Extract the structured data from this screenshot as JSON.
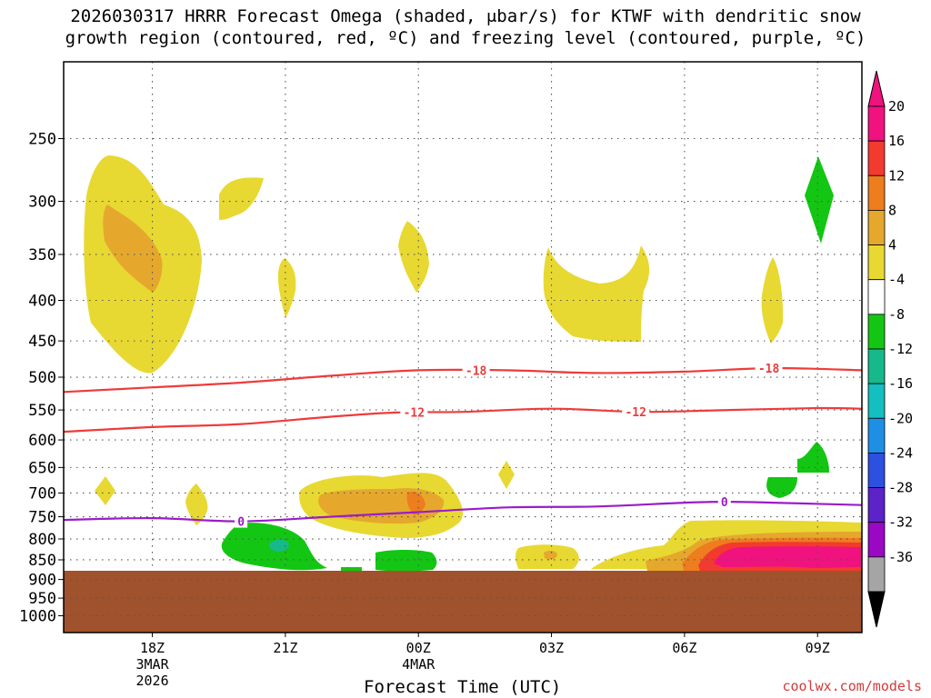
{
  "title": {
    "line1": "2026030317 HRRR Forecast Omega (shaded, μbar/s) for KTWF with dendritic snow",
    "line2": "growth region (contoured, red, ºC) and freezing level (contoured, purple, ºC)"
  },
  "credit": "coolwx.com/models",
  "chart_data": {
    "type": "heatmap",
    "title": "2026030317 HRRR Forecast Omega (shaded, μbar/s) for KTWF with dendritic snow growth region (contoured, red, ºC) and freezing level (contoured, purple, ºC)",
    "xlabel": "Forecast Time (UTC)",
    "ylabel": "",
    "x_range_hours": [
      16.0,
      34.0
    ],
    "x_ticks": [
      {
        "hour": 18,
        "label": "18Z",
        "sub1": "3MAR",
        "sub2": "2026"
      },
      {
        "hour": 21,
        "label": "21Z",
        "sub1": "",
        "sub2": ""
      },
      {
        "hour": 24,
        "label": "00Z",
        "sub1": "4MAR",
        "sub2": ""
      },
      {
        "hour": 27,
        "label": "03Z",
        "sub1": "",
        "sub2": ""
      },
      {
        "hour": 30,
        "label": "06Z",
        "sub1": "",
        "sub2": ""
      },
      {
        "hour": 33,
        "label": "09Z",
        "sub1": "",
        "sub2": ""
      }
    ],
    "y_axis": "pressure (hPa), log scale",
    "y_range": [
      1050,
      200
    ],
    "y_ticks": [
      250,
      300,
      350,
      400,
      450,
      500,
      550,
      600,
      650,
      700,
      750,
      800,
      850,
      900,
      950,
      1000
    ],
    "ground_pressure": 875,
    "colorbar": {
      "labels": [
        "20",
        "16",
        "12",
        "8",
        "4",
        "-4",
        "-8",
        "-12",
        "-16",
        "-20",
        "-24",
        "-28",
        "-32",
        "-36"
      ],
      "colors": [
        "#f0127e",
        "#f23a2e",
        "#ee7d1e",
        "#e5a82d",
        "#e8d832",
        "#ffffff",
        "#13c613",
        "#17b98a",
        "#13bfbf",
        "#1f8fe6",
        "#2c50e0",
        "#5b23c8",
        "#9a08c4",
        "#a5a5a5"
      ],
      "over_color": "#f0127e",
      "under_color": "#000000"
    },
    "omega_features": [
      {
        "hour": 18.5,
        "p": 360,
        "value": 5,
        "desc": "upper yellow"
      },
      {
        "hour": 18.5,
        "p": 355,
        "value": 9,
        "desc": "upper orange core"
      },
      {
        "hour": 21.0,
        "p": 305,
        "value": 5
      },
      {
        "hour": 22.0,
        "p": 395,
        "value": 5
      },
      {
        "hour": 25.0,
        "p": 360,
        "value": 5
      },
      {
        "hour": 29.0,
        "p": 400,
        "value": 5
      },
      {
        "hour": 32.5,
        "p": 420,
        "value": 5
      },
      {
        "hour": 33.5,
        "p": 305,
        "value": -6
      },
      {
        "hour": 24.5,
        "p": 730,
        "value": 7
      },
      {
        "hour": 21.5,
        "p": 820,
        "value": -6
      },
      {
        "hour": 24.5,
        "p": 860,
        "value": -6
      },
      {
        "hour": 32.0,
        "p": 840,
        "value": 20
      },
      {
        "hour": 33.0,
        "p": 690,
        "value": -6
      },
      {
        "hour": 33.5,
        "p": 640,
        "value": -6
      }
    ],
    "series": [
      {
        "name": "-18",
        "color": "#ee3b3b",
        "hours": [
          16.0,
          18.0,
          20.0,
          22.0,
          24.0,
          26.0,
          28.0,
          30.0,
          32.0,
          34.0
        ],
        "pressure": [
          522,
          515,
          508,
          498,
          490,
          490,
          494,
          492,
          487,
          490
        ],
        "label_hours": [
          25.3,
          31.9
        ]
      },
      {
        "name": "-12",
        "color": "#ee3b3b",
        "hours": [
          16.0,
          18.0,
          20.0,
          22.0,
          23.5,
          25.0,
          27.0,
          29.0,
          31.0,
          33.0,
          34.0
        ],
        "pressure": [
          586,
          578,
          573,
          561,
          554,
          553,
          548,
          553,
          550,
          547,
          548
        ],
        "label_hours": [
          23.9,
          28.9
        ]
      },
      {
        "name": "0",
        "color": "#9b1cc7",
        "hours": [
          16.0,
          18.0,
          20.0,
          22.0,
          24.0,
          26.0,
          28.0,
          30.0,
          31.0,
          32.0,
          34.0
        ],
        "pressure": [
          757,
          753,
          760,
          750,
          740,
          730,
          728,
          720,
          718,
          720,
          725
        ],
        "label_hours": [
          20.0,
          30.9
        ]
      }
    ]
  }
}
